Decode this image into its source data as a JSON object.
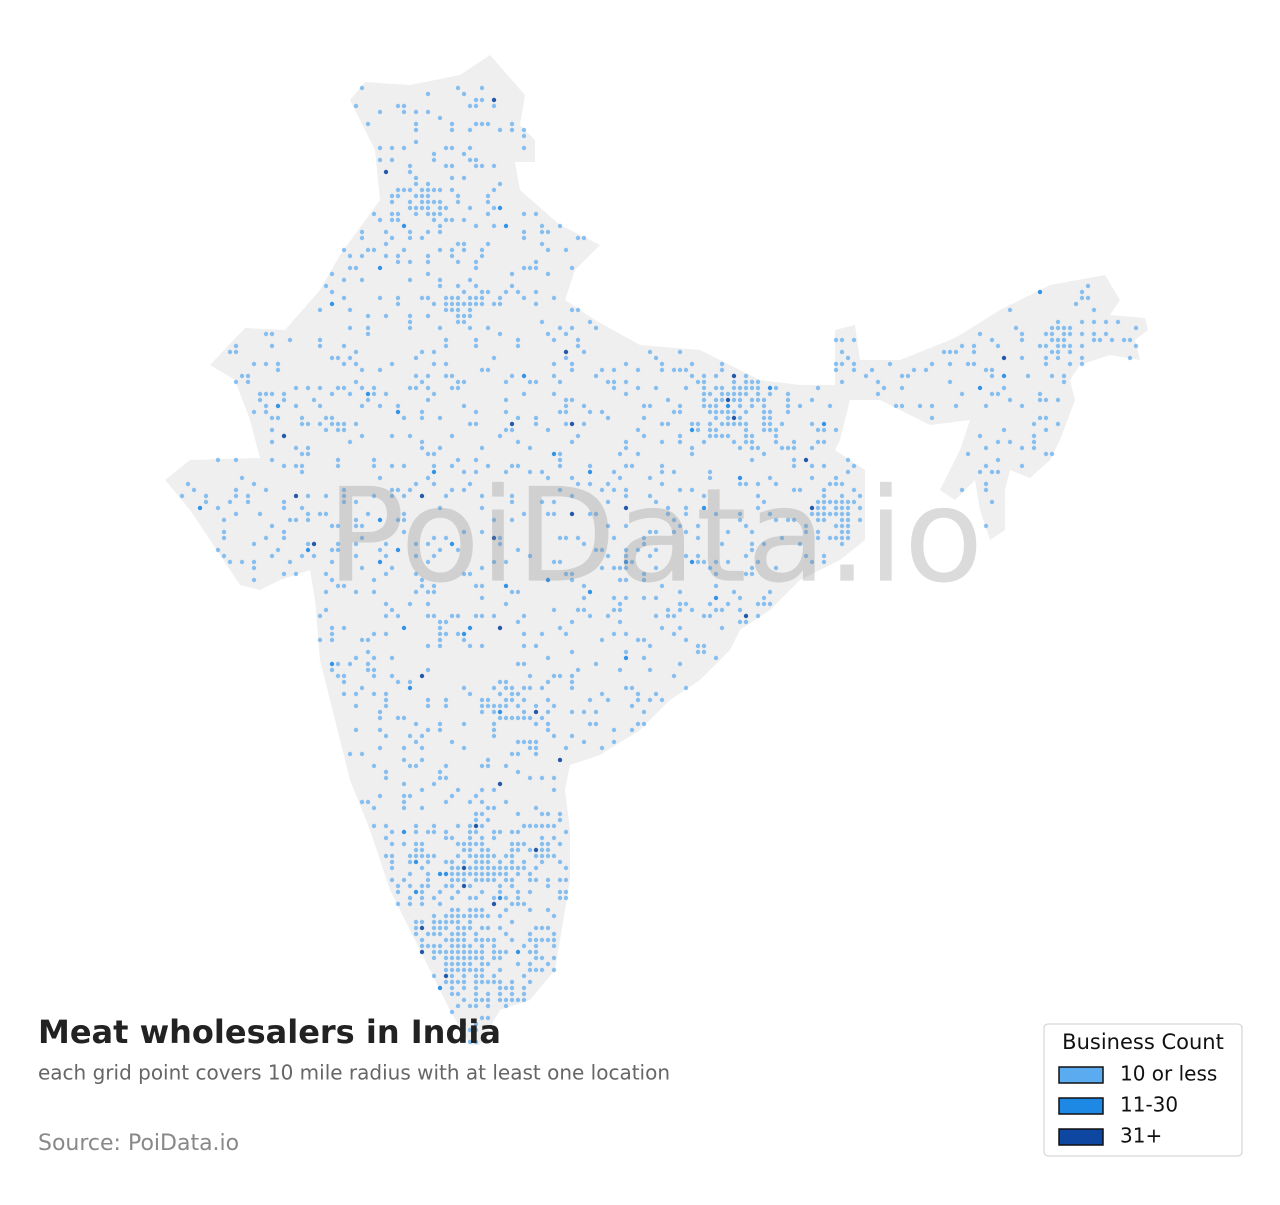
{
  "title": "Meat wholesalers in India",
  "subtitle": "each grid point covers 10 mile radius with at least one location",
  "source": "Source: PoiData.io",
  "watermark": "PoiData.io",
  "legend": {
    "title": "Business Count",
    "items": [
      {
        "label": "10 or less",
        "color": "#5aabf0"
      },
      {
        "label": "11-30",
        "color": "#1e88e5"
      },
      {
        "label": "31+",
        "color": "#0d47a1"
      }
    ]
  }
}
